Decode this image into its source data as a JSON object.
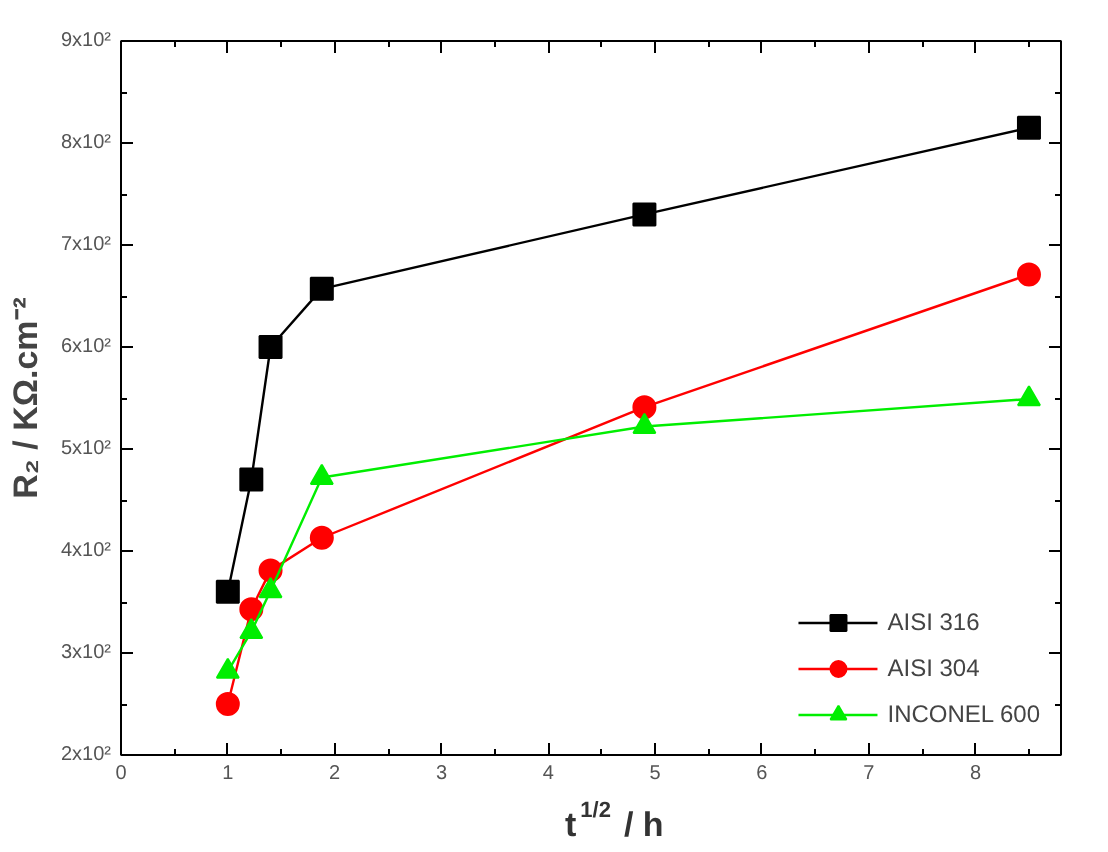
{
  "chart_data": {
    "type": "line",
    "xlabel": "t$^{1/2}$ / h",
    "ylabel": "R₂ / KΩ.cm⁻²",
    "xlim": [
      0,
      8.8
    ],
    "xticks": [
      0,
      1,
      2,
      3,
      4,
      5,
      6,
      7,
      8
    ],
    "ylim": [
      200,
      900
    ],
    "yticks": [
      {
        "value": 200,
        "label": "2x10²"
      },
      {
        "value": 300,
        "label": "3x10²"
      },
      {
        "value": 400,
        "label": "4x10²"
      },
      {
        "value": 500,
        "label": "5x10²"
      },
      {
        "value": 600,
        "label": "6x10²"
      },
      {
        "value": 700,
        "label": "7x10²"
      },
      {
        "value": 800,
        "label": "8x10²"
      },
      {
        "value": 900,
        "label": "9x10²"
      }
    ],
    "x": [
      1,
      1.22,
      1.4,
      1.88,
      4.9,
      8.5
    ],
    "legend": "bottom right",
    "grid": false,
    "line_style": "solid",
    "series": [
      {
        "name": "AISI 316",
        "color": "#000000",
        "marker": "square",
        "values": [
          360,
          470,
          600,
          657,
          730,
          815
        ]
      },
      {
        "name": "AISI 304",
        "color": "#ff0000",
        "marker": "circle",
        "values": [
          250,
          343,
          381,
          413,
          541,
          671
        ]
      },
      {
        "name": "INCONEL 600",
        "color": "#00ee00",
        "marker": "triangle",
        "values": [
          282,
          321,
          361,
          472,
          522,
          549
        ]
      }
    ]
  }
}
